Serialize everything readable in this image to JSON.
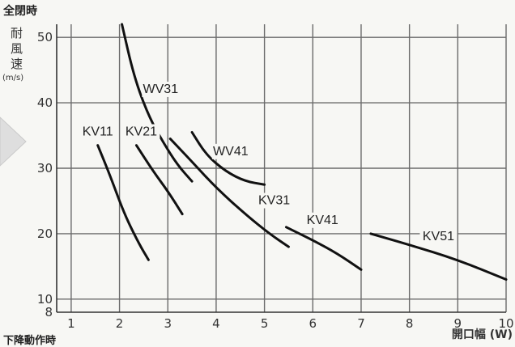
{
  "header": {
    "top_title": "全閉時",
    "bottom_title": "下降動作時"
  },
  "chart_data": {
    "type": "line",
    "title": "全閉時",
    "ylabel_chars": [
      "耐",
      "風",
      "速"
    ],
    "ylabel_unit": "(m/s)",
    "xlabel": "開口幅 (W)",
    "xlim": [
      0.7,
      10
    ],
    "ylim": [
      8,
      52
    ],
    "x_ticks": [
      1,
      2,
      3,
      4,
      5,
      6,
      7,
      8,
      9,
      10
    ],
    "y_ticks": [
      8,
      10,
      20,
      30,
      40,
      50
    ],
    "grid": true,
    "series": [
      {
        "name": "WV31",
        "x": [
          2.05,
          2.3,
          2.6,
          2.9,
          3.2,
          3.5
        ],
        "y": [
          52,
          44,
          38,
          34,
          30.5,
          28
        ]
      },
      {
        "name": "WV41",
        "x": [
          3.5,
          3.8,
          4.2,
          4.6,
          5.0
        ],
        "y": [
          35.5,
          32,
          29.5,
          28,
          27.5
        ]
      },
      {
        "name": "KV11",
        "x": [
          1.55,
          1.8,
          2.1,
          2.4,
          2.6
        ],
        "y": [
          33.5,
          29,
          23,
          18.5,
          16
        ]
      },
      {
        "name": "KV21",
        "x": [
          2.35,
          2.7,
          3.0,
          3.3
        ],
        "y": [
          33.5,
          29.5,
          26.5,
          23
        ]
      },
      {
        "name": "KV31",
        "x": [
          3.05,
          3.5,
          4.0,
          4.6,
          5.1,
          5.5
        ],
        "y": [
          34.5,
          31,
          27,
          23,
          20,
          18
        ]
      },
      {
        "name": "KV41",
        "x": [
          5.45,
          6.0,
          6.5,
          7.0
        ],
        "y": [
          21,
          19,
          17,
          14.5
        ]
      },
      {
        "name": "KV51",
        "x": [
          7.2,
          8.0,
          9.0,
          10.0
        ],
        "y": [
          20,
          18.3,
          16,
          13
        ]
      }
    ],
    "labels": [
      {
        "text": "WV31",
        "x": 2.85,
        "y": 41.5
      },
      {
        "text": "WV41",
        "x": 4.3,
        "y": 32
      },
      {
        "text": "KV11",
        "x": 1.55,
        "y": 35
      },
      {
        "text": "KV21",
        "x": 2.45,
        "y": 35
      },
      {
        "text": "KV31",
        "x": 5.2,
        "y": 24.5
      },
      {
        "text": "KV41",
        "x": 6.2,
        "y": 21.5
      },
      {
        "text": "KV51",
        "x": 8.6,
        "y": 19
      }
    ]
  }
}
